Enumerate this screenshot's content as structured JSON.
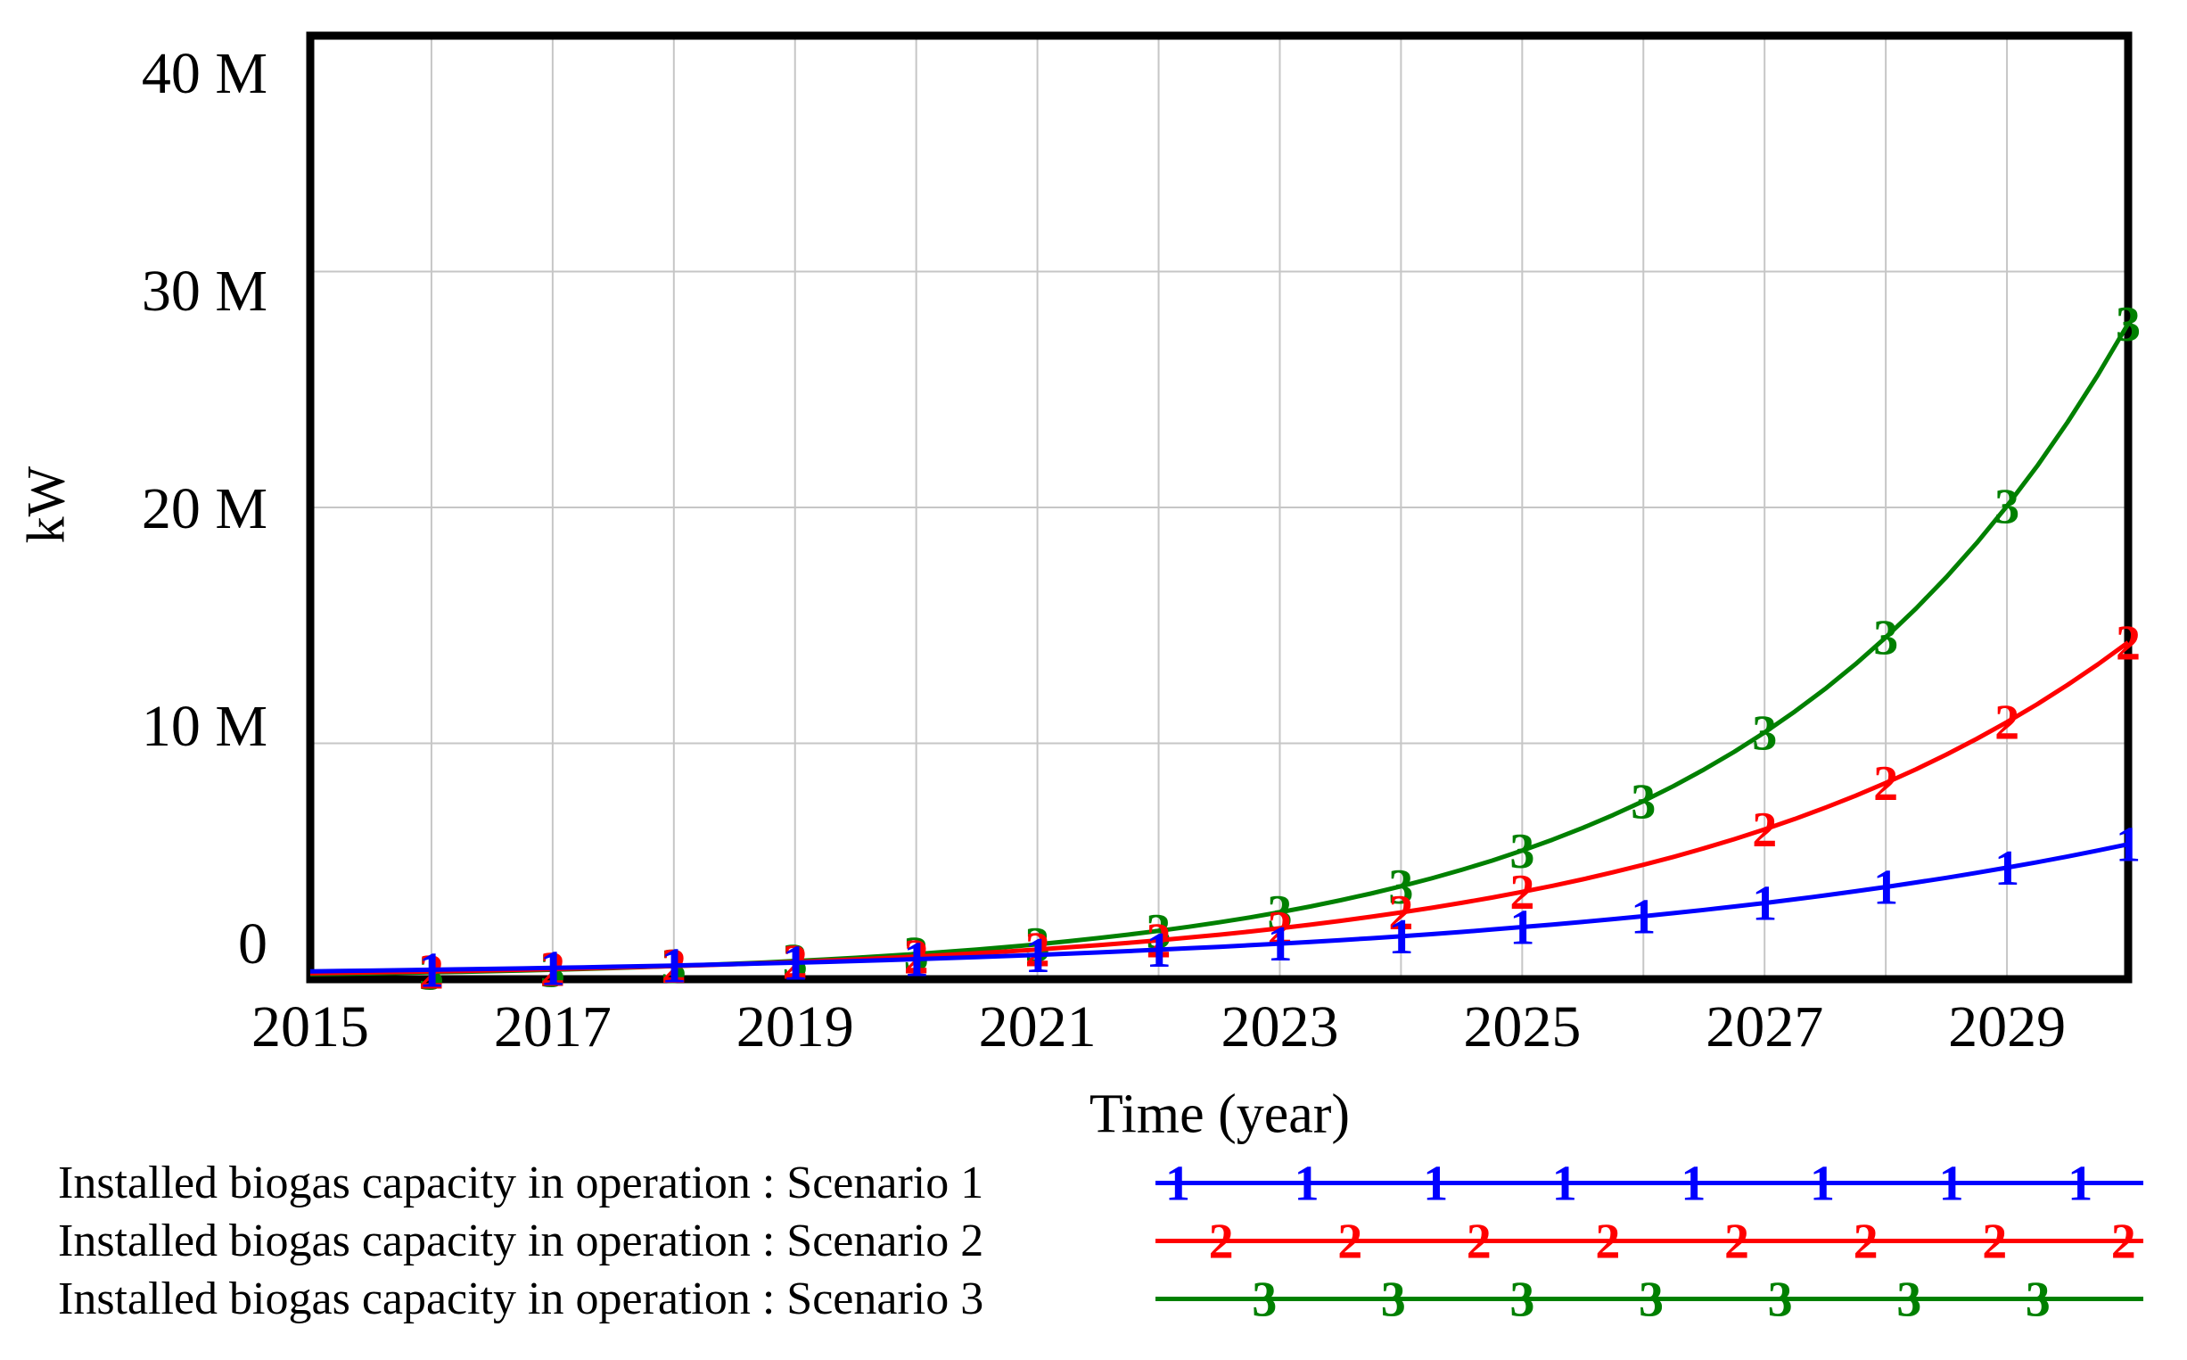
{
  "figure": {
    "background": "#ffffff",
    "border_color": "#000000",
    "grid_color": "#c6c6c6",
    "text_color": "#000000"
  },
  "axes": {
    "y_unit_label": "kW",
    "x_axis_title": "Time (year)",
    "y_tick_labels": [
      "40 M",
      "30 M",
      "20 M",
      "10 M",
      "0"
    ],
    "x_tick_labels": [
      "2015",
      "2017",
      "2019",
      "2021",
      "2023",
      "2025",
      "2027",
      "2029"
    ]
  },
  "chart_data": {
    "type": "line",
    "title": "",
    "xlabel": "Time (year)",
    "ylabel": "kW",
    "xlim": [
      2015,
      2030
    ],
    "ylim_MkW": [
      0,
      40
    ],
    "grid": true,
    "legend_position": "bottom-left",
    "x_gridline_years": [
      2016,
      2017,
      2018,
      2019,
      2020,
      2021,
      2022,
      2023,
      2024,
      2025,
      2026,
      2027,
      2028,
      2029
    ],
    "y_gridlines_MkW": [
      10,
      20,
      30
    ],
    "x": [
      2015,
      2016,
      2017,
      2018,
      2019,
      2020,
      2021,
      2022,
      2023,
      2024,
      2025,
      2026,
      2027,
      2028,
      2029,
      2030
    ],
    "series": [
      {
        "name": "Installed biogas capacity in operation : Scenario 1",
        "scenario": "Scenario 1",
        "color": "#0000ff",
        "marker": "1",
        "values_MkW": [
          0.33,
          0.4,
          0.48,
          0.58,
          0.7,
          0.85,
          1.03,
          1.25,
          1.51,
          1.82,
          2.21,
          2.67,
          3.23,
          3.91,
          4.73,
          5.72
        ],
        "marker_years": [
          2016,
          2017,
          2018,
          2019,
          2020,
          2021,
          2022,
          2023,
          2024,
          2025,
          2026,
          2027,
          2028,
          2029,
          2030
        ]
      },
      {
        "name": "Installed biogas capacity in operation : Scenario 2",
        "scenario": "Scenario 2",
        "color": "#ff0000",
        "marker": "2",
        "values_MkW": [
          0.25,
          0.33,
          0.43,
          0.56,
          0.73,
          0.96,
          1.26,
          1.65,
          2.16,
          2.83,
          3.7,
          4.85,
          6.35,
          8.32,
          10.9,
          14.28
        ],
        "marker_years": [
          2016,
          2017,
          2018,
          2019,
          2020,
          2021,
          2022,
          2023,
          2024,
          2025,
          2027,
          2028,
          2029,
          2030
        ]
      },
      {
        "name": "Installed biogas capacity in operation : Scenario 3",
        "scenario": "Scenario 3",
        "color": "#008000",
        "marker": "3",
        "values_MkW": [
          0.21,
          0.29,
          0.4,
          0.56,
          0.77,
          1.07,
          1.48,
          2.05,
          2.84,
          3.94,
          5.45,
          7.55,
          10.46,
          14.49,
          20.06,
          27.79
        ],
        "marker_years": [
          2016,
          2017,
          2018,
          2019,
          2020,
          2021,
          2022,
          2023,
          2024,
          2025,
          2026,
          2027,
          2028,
          2029,
          2030
        ]
      }
    ]
  },
  "legend": {
    "items": [
      {
        "label": "Installed biogas capacity in operation : Scenario 1",
        "marker": "1",
        "color": "#0000ff",
        "marker_count": 8
      },
      {
        "label": "Installed biogas capacity in operation : Scenario 2",
        "marker": "2",
        "color": "#ff0000",
        "marker_count": 8
      },
      {
        "label": "Installed biogas capacity in operation : Scenario 3",
        "marker": "3",
        "color": "#008000",
        "marker_count": 7
      }
    ]
  }
}
